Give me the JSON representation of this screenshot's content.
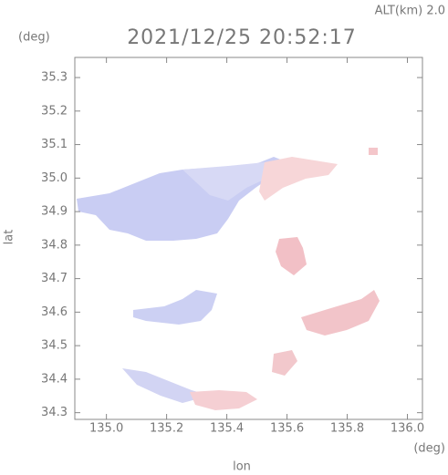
{
  "chart_data": {
    "type": "map",
    "title": "2021/12/25 20:52:17",
    "subtitle": "ALT(km) 2.0",
    "y_unit": "(deg)",
    "x_unit": "(deg)",
    "x_label": "lon",
    "y_label": "lat",
    "xlim": [
      134.895,
      136.05
    ],
    "ylim": [
      34.28,
      35.36
    ],
    "xticks": [
      {
        "value": 135,
        "label": "135.0"
      },
      135.2,
      135.4,
      135.6,
      135.8,
      {
        "value": 136,
        "label": "136.0"
      }
    ],
    "yticks": [
      34.3,
      34.4,
      34.5,
      34.6,
      34.7,
      34.8,
      34.9,
      {
        "value": 35,
        "label": "35.0"
      },
      35.1,
      35.2,
      35.3
    ]
  }
}
